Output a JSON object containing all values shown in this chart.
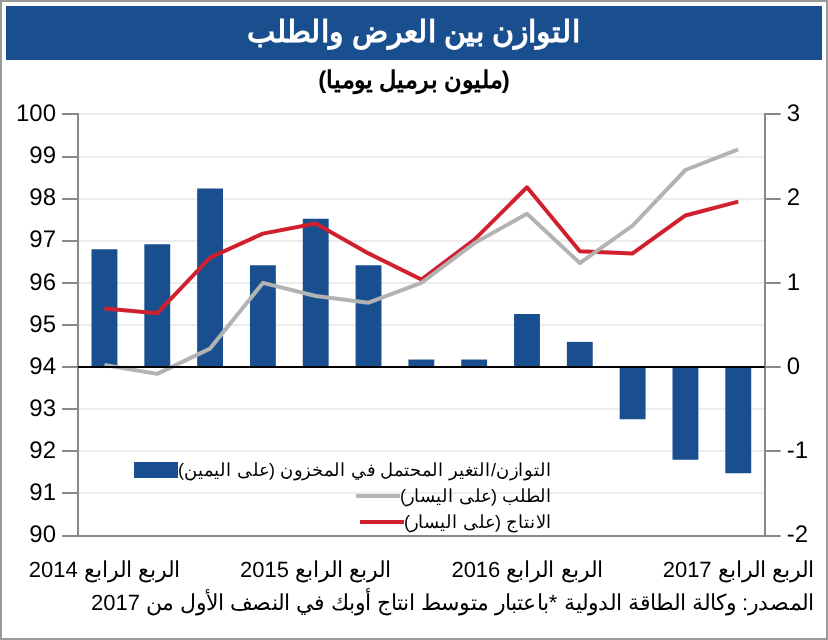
{
  "chart_data": {
    "type": "bar",
    "title": "التوازن بين العرض والطلب",
    "subtitle": "(مليون برميل يوميا)",
    "categories": [
      "الربع الرابع 2014",
      null,
      null,
      null,
      "الربع الرابع 2015",
      null,
      null,
      null,
      "الربع الرابع 2016",
      null,
      null,
      null,
      "الربع الرابع 2017"
    ],
    "series": [
      {
        "name": "التوازن/التغير المحتمل في المخزون (على اليمين)",
        "axis": "y2",
        "color": "#1a4f8f",
        "values": [
          1.4,
          1.46,
          2.12,
          1.21,
          1.76,
          1.21,
          0.09,
          0.09,
          0.63,
          0.3,
          -0.62,
          -1.1,
          -1.26
        ]
      },
      {
        "name": "الطلب (على اليسار)",
        "type": "line",
        "color": "#b3b3b3",
        "values": [
          94.05,
          93.84,
          94.44,
          96.0,
          95.69,
          95.53,
          96.0,
          96.94,
          97.64,
          96.47,
          97.36,
          98.68,
          99.17
        ]
      },
      {
        "name": "الانتاج (على اليسار)",
        "type": "line",
        "color": "#d0202e",
        "values": [
          95.39,
          95.28,
          96.6,
          97.17,
          97.41,
          96.7,
          96.08,
          97.02,
          98.27,
          96.75,
          96.7,
          97.6,
          97.93
        ]
      }
    ],
    "ylim": [
      90,
      100
    ],
    "yticks": [
      90,
      91,
      92,
      93,
      94,
      95,
      96,
      97,
      98,
      99,
      100
    ],
    "y2lim": [
      -2,
      3
    ],
    "y2ticks": [
      -2,
      -1,
      0,
      1,
      2,
      3
    ],
    "grid": "y",
    "legend": "bottom left",
    "marker": "none",
    "annotations": [
      "المصدر: وكالة الطاقة الدولية *باعتبار متوسط انتاج أوبك في النصف الأول من 2017"
    ]
  }
}
